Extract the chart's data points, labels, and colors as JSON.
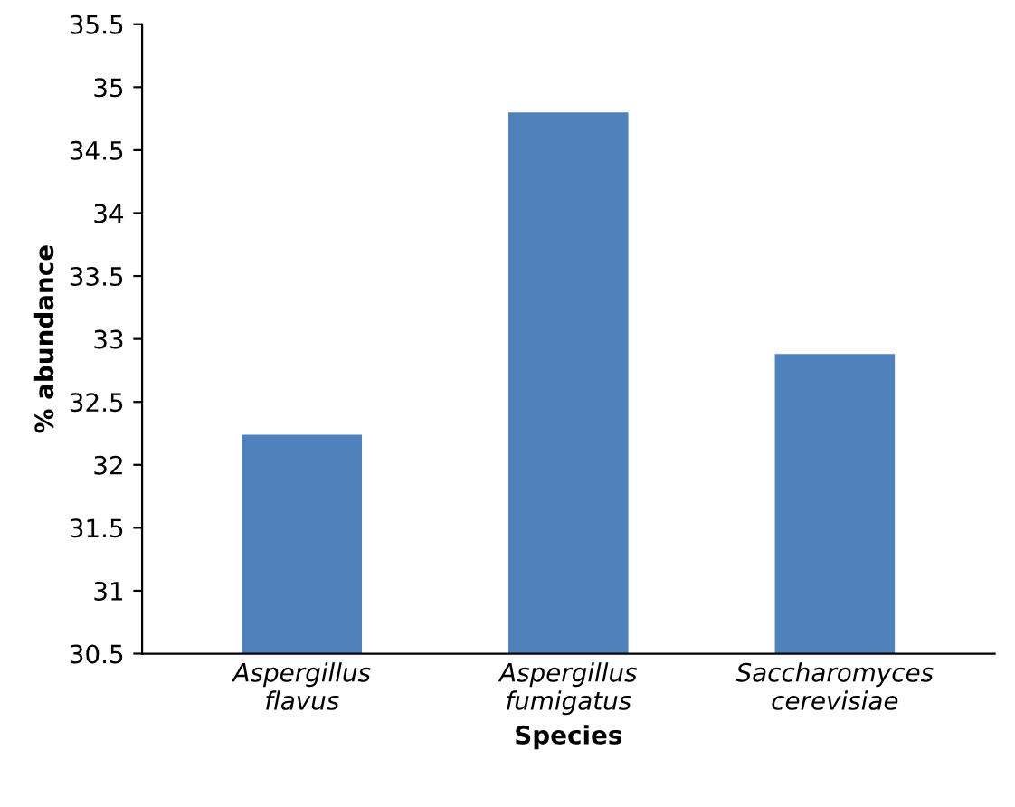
{
  "chart_data": {
    "type": "bar",
    "xlabel": "Species",
    "ylabel": "% abundance",
    "categories": [
      "Aspergillus\nflavus",
      "Aspergillus\nfumigatus",
      "Saccharomyces\ncerevisiae"
    ],
    "values": [
      32.24,
      34.8,
      32.88
    ],
    "color": "#4f81bd",
    "ylim": [
      30.5,
      35.5
    ],
    "yticks": [
      30.5,
      31,
      31.5,
      32,
      32.5,
      33,
      33.5,
      34,
      34.5,
      35,
      35.5
    ],
    "grid": false
  }
}
